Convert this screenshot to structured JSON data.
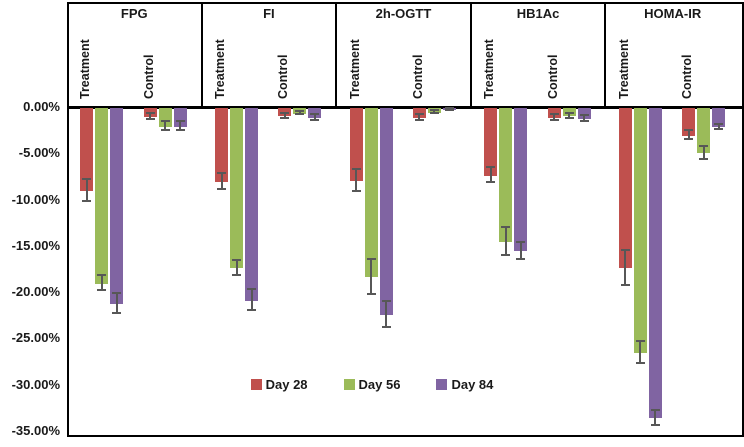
{
  "chart_data": {
    "type": "bar",
    "title": "",
    "xlabel": "",
    "ylabel": "",
    "grid": false,
    "legend_position": "bottom-center",
    "y_axis": {
      "unit": "%",
      "min": -35,
      "max": 0,
      "tick_step": 5,
      "tick_labels": [
        "0.00%",
        "-5.00%",
        "-10.00%",
        "-15.00%",
        "-20.00%",
        "-25.00%",
        "-30.00%",
        "-35.00%"
      ]
    },
    "panels": [
      "FPG",
      "FI",
      "2h-OGTT",
      "HB1Ac",
      "HOMA-IR"
    ],
    "groups": [
      "Treatment",
      "Control"
    ],
    "series": [
      {
        "name": "Day 28",
        "color": "#C0504D"
      },
      {
        "name": "Day 56",
        "color": "#9BBB59"
      },
      {
        "name": "Day 84",
        "color": "#8064A2"
      }
    ],
    "error_bar_color": "#575757",
    "values": {
      "FPG": {
        "Treatment": [
          -9.0,
          -19.0,
          -21.2
        ],
        "Control": [
          -1.0,
          -2.0,
          -2.0
        ]
      },
      "FI": {
        "Treatment": [
          -8.0,
          -17.3,
          -20.8
        ],
        "Control": [
          -0.9,
          -0.6,
          -1.1
        ]
      },
      "2h-OGTT": {
        "Treatment": [
          -7.9,
          -18.3,
          -22.4
        ],
        "Control": [
          -1.1,
          -0.5,
          -0.2
        ]
      },
      "HB1Ac": {
        "Treatment": [
          -7.3,
          -14.5,
          -15.5
        ],
        "Control": [
          -1.1,
          -0.9,
          -1.2
        ]
      },
      "HOMA-IR": {
        "Treatment": [
          -17.3,
          -26.5,
          -33.5
        ],
        "Control": [
          -3.0,
          -4.9,
          -2.1
        ]
      }
    },
    "errors": {
      "FPG": {
        "Treatment": [
          1.2,
          0.8,
          1.1
        ],
        "Control": [
          0.3,
          0.5,
          0.5
        ]
      },
      "FI": {
        "Treatment": [
          0.9,
          0.8,
          1.1
        ],
        "Control": [
          0.3,
          0.2,
          0.3
        ]
      },
      "2h-OGTT": {
        "Treatment": [
          1.2,
          1.9,
          1.4
        ],
        "Control": [
          0.3,
          0.2,
          0.1
        ]
      },
      "HB1Ac": {
        "Treatment": [
          0.8,
          1.5,
          0.9
        ],
        "Control": [
          0.3,
          0.3,
          0.3
        ]
      },
      "HOMA-IR": {
        "Treatment": [
          1.9,
          1.2,
          0.8
        ],
        "Control": [
          0.5,
          0.7,
          0.3
        ]
      }
    }
  }
}
